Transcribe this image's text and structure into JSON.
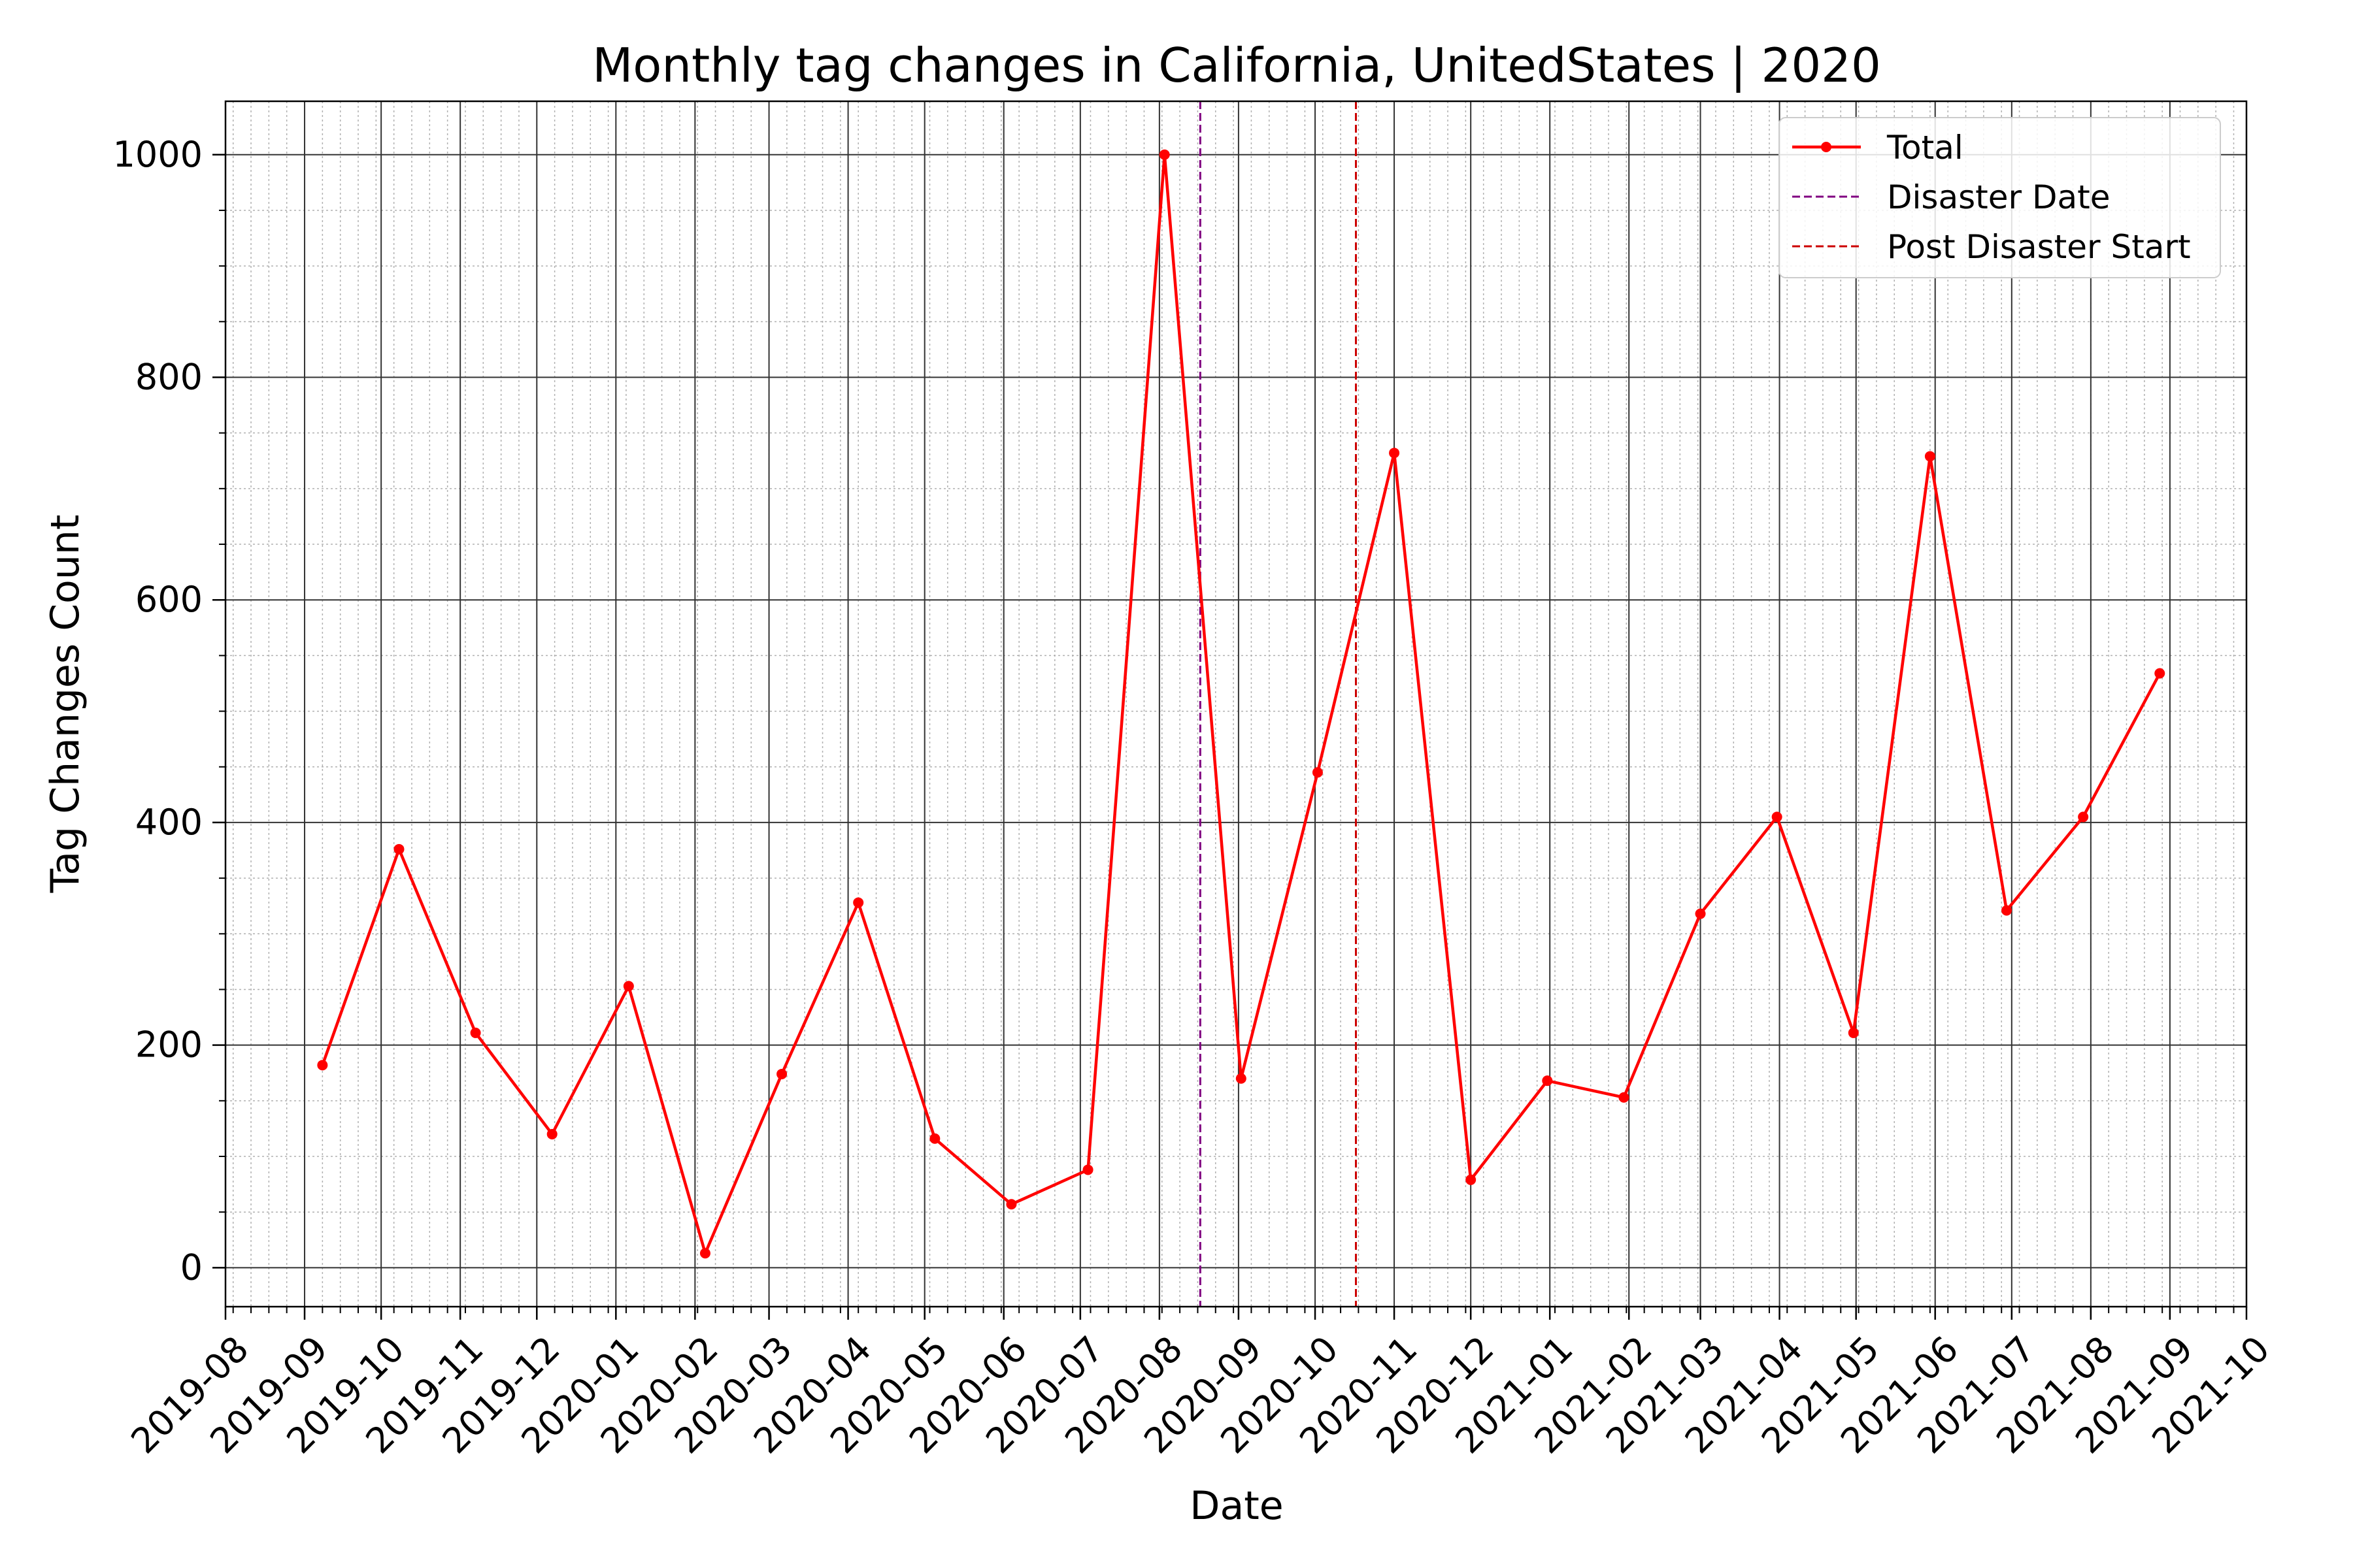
{
  "chart_data": {
    "type": "line",
    "title": "Monthly tag changes in California, UnitedStates | 2020",
    "xlabel": "Date",
    "ylabel": "Tag Changes Count",
    "x_ticks": [
      "2019-08",
      "2019-09",
      "2019-10",
      "2019-11",
      "2019-12",
      "2020-01",
      "2020-02",
      "2020-03",
      "2020-04",
      "2020-05",
      "2020-06",
      "2020-07",
      "2020-08",
      "2020-09",
      "2020-10",
      "2020-11",
      "2020-12",
      "2021-01",
      "2021-02",
      "2021-03",
      "2021-04",
      "2021-05",
      "2021-06",
      "2021-07",
      "2021-08",
      "2021-09",
      "2021-10"
    ],
    "y_ticks": [
      0,
      200,
      400,
      600,
      800,
      1000
    ],
    "xlim": [
      "2019-08-01",
      "2021-10-01"
    ],
    "ylim": [
      -35,
      1048
    ],
    "grid": true,
    "legend_position": "top-right",
    "series": [
      {
        "name": "Total",
        "color": "#ff0000",
        "marker": "circle",
        "points": [
          {
            "x": "2019-09-08",
            "y": 182
          },
          {
            "x": "2019-10-08",
            "y": 376
          },
          {
            "x": "2019-11-07",
            "y": 211
          },
          {
            "x": "2019-12-07",
            "y": 120
          },
          {
            "x": "2020-01-06",
            "y": 253
          },
          {
            "x": "2020-02-05",
            "y": 13
          },
          {
            "x": "2020-03-06",
            "y": 174
          },
          {
            "x": "2020-04-05",
            "y": 328
          },
          {
            "x": "2020-05-05",
            "y": 116
          },
          {
            "x": "2020-06-04",
            "y": 57
          },
          {
            "x": "2020-07-04",
            "y": 88
          },
          {
            "x": "2020-08-03",
            "y": 1000
          },
          {
            "x": "2020-09-02",
            "y": 170
          },
          {
            "x": "2020-10-02",
            "y": 445
          },
          {
            "x": "2020-11-01",
            "y": 732
          },
          {
            "x": "2020-12-01",
            "y": 79
          },
          {
            "x": "2020-12-31",
            "y": 168
          },
          {
            "x": "2021-01-30",
            "y": 153
          },
          {
            "x": "2021-03-01",
            "y": 318
          },
          {
            "x": "2021-03-31",
            "y": 405
          },
          {
            "x": "2021-04-30",
            "y": 211
          },
          {
            "x": "2021-05-30",
            "y": 729
          },
          {
            "x": "2021-06-29",
            "y": 321
          },
          {
            "x": "2021-07-29",
            "y": 405
          },
          {
            "x": "2021-08-28",
            "y": 534
          }
        ]
      }
    ],
    "vlines": [
      {
        "name": "Disaster Date",
        "x": "2020-08-17",
        "color": "#800080",
        "style": "dashed"
      },
      {
        "name": "Post Disaster Start",
        "x": "2020-10-17",
        "color": "#cc0000",
        "style": "dashed"
      }
    ]
  }
}
